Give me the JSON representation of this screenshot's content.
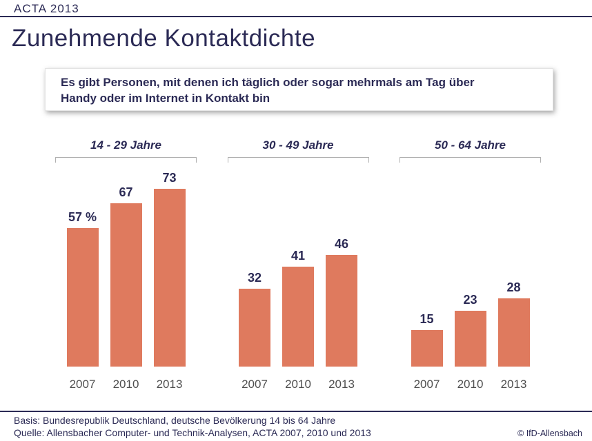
{
  "header": {
    "brand": "ACTA 2013",
    "title": "Zunehmende Kontaktdichte"
  },
  "statement": {
    "lines": [
      "Es gibt Personen, mit denen ich täglich oder sogar mehrmals am Tag über",
      "Handy oder im Internet in Kontakt bin"
    ]
  },
  "chart_data": {
    "type": "bar",
    "title": "Zunehmende Kontaktdichte",
    "unit": "percent",
    "categories": [
      "2007",
      "2010",
      "2013"
    ],
    "groups": [
      {
        "label": "14 - 29 Jahre",
        "values": [
          57,
          67,
          73
        ],
        "value_labels": [
          "57 %",
          "67",
          "73"
        ]
      },
      {
        "label": "30 - 49 Jahre",
        "values": [
          32,
          41,
          46
        ],
        "value_labels": [
          "32",
          "41",
          "46"
        ]
      },
      {
        "label": "50 - 64 Jahre",
        "values": [
          15,
          23,
          28
        ],
        "value_labels": [
          "15",
          "23",
          "28"
        ]
      }
    ],
    "ylim": [
      0,
      80
    ],
    "grid": false,
    "legend": "none",
    "bar_color": "#df7a5e"
  },
  "footer": {
    "basis": "Basis: Bundesrepublik Deutschland, deutsche Bevölkerung 14 bis 64 Jahre",
    "quelle": "Quelle: Allensbacher Computer- und Technik-Analysen, ACTA 2007, 2010 und 2013",
    "copyright": "© IfD-Allensbach"
  },
  "colors": {
    "navy": "#2b2a55",
    "bar": "#df7a5e",
    "year_gray": "#4f4f4f",
    "bracket_gray": "#b0b0b0"
  }
}
